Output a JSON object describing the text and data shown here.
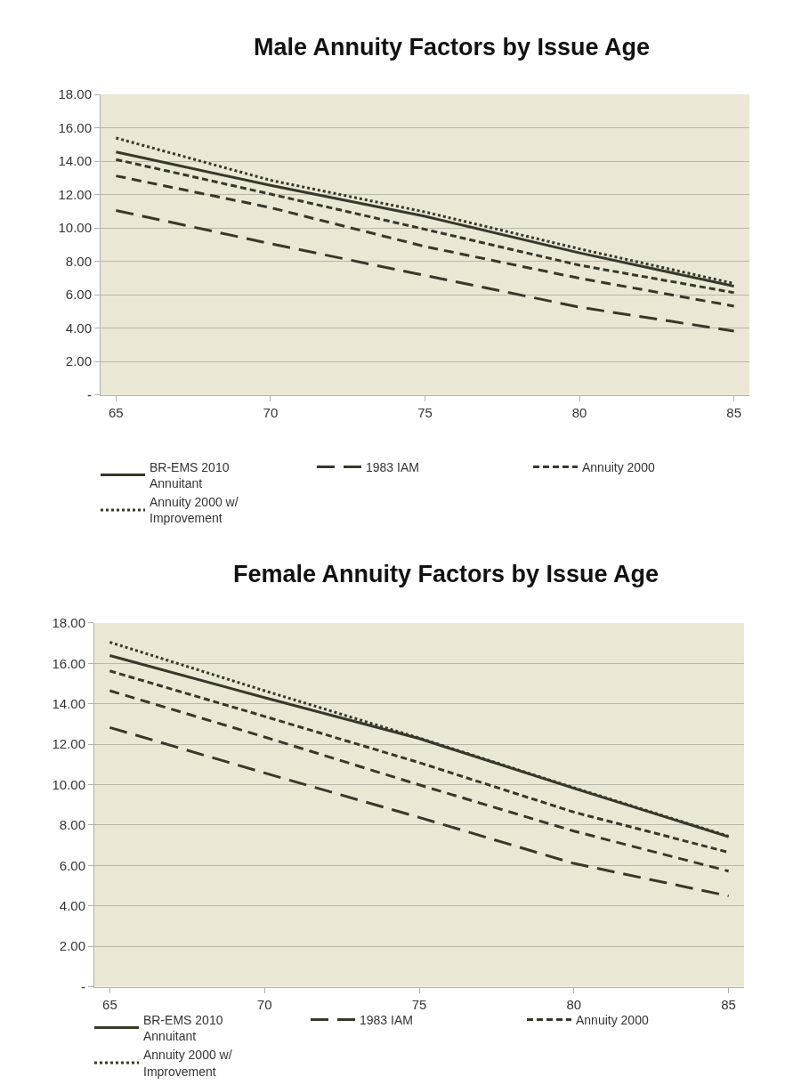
{
  "chart_data": [
    {
      "type": "line",
      "title": "Male Annuity Factors by Issue Age",
      "xlim": [
        64.5,
        85.5
      ],
      "xticks": [
        65,
        70,
        75,
        80,
        85
      ],
      "ylim": [
        0,
        18
      ],
      "yticks": [
        {
          "value": 0,
          "label": "-"
        },
        {
          "value": 2,
          "label": "2.00"
        },
        {
          "value": 4,
          "label": "4.00"
        },
        {
          "value": 6,
          "label": "6.00"
        },
        {
          "value": 8,
          "label": "8.00"
        },
        {
          "value": 10,
          "label": "10.00"
        },
        {
          "value": 12,
          "label": "12.00"
        },
        {
          "value": 14,
          "label": "14.00"
        },
        {
          "value": 16,
          "label": "16.00"
        },
        {
          "value": 18,
          "label": "18.00"
        }
      ],
      "x": [
        65,
        70,
        75,
        80,
        85
      ],
      "grid": "y",
      "legend": "bottom",
      "marker": "none",
      "series": [
        {
          "name": "BR-EMS 2010 Annuitant",
          "color": "#38382a",
          "line_style": "solid",
          "values": [
            14.55,
            12.55,
            10.7,
            8.51,
            6.52
          ]
        },
        {
          "name": "1983 IAM",
          "color": "#38382a",
          "line_style": "dashed",
          "values": [
            11.05,
            9.06,
            7.16,
            5.26,
            3.83
          ]
        },
        {
          "color": "#38382a",
          "line_style": "dashed",
          "values": [
            13.12,
            11.22,
            8.89,
            6.99,
            5.32
          ]
        },
        {
          "name": "Annuity 2000",
          "color": "#38382a",
          "line_style": "dashed",
          "values": [
            14.1,
            12.03,
            9.92,
            7.77,
            6.13
          ]
        },
        {
          "name": "Annuity 2000 w/ Improvement",
          "color": "#38382a",
          "line_style": "dotted",
          "values": [
            15.39,
            12.86,
            10.96,
            8.75,
            6.68
          ]
        }
      ]
    },
    {
      "type": "line",
      "title": "Female Annuity Factors by Issue Age",
      "xlim": [
        64.5,
        85.5
      ],
      "xticks": [
        65,
        70,
        75,
        80,
        85
      ],
      "ylim": [
        0,
        18
      ],
      "yticks": [
        {
          "value": 0,
          "label": "-"
        },
        {
          "value": 2,
          "label": "2.00"
        },
        {
          "value": 4,
          "label": "4.00"
        },
        {
          "value": 6,
          "label": "6.00"
        },
        {
          "value": 8,
          "label": "8.00"
        },
        {
          "value": 10,
          "label": "10.00"
        },
        {
          "value": 12,
          "label": "12.00"
        },
        {
          "value": 14,
          "label": "14.00"
        },
        {
          "value": 16,
          "label": "16.00"
        },
        {
          "value": 18,
          "label": "18.00"
        }
      ],
      "x": [
        65,
        70,
        75,
        80,
        85
      ],
      "grid": "y",
      "legend": "bottom",
      "marker": "none",
      "series": [
        {
          "name": "BR-EMS 2010 Annuitant",
          "color": "#38382a",
          "line_style": "solid",
          "values": [
            16.39,
            14.31,
            12.28,
            9.82,
            7.42
          ]
        },
        {
          "name": "1983 IAM",
          "color": "#38382a",
          "line_style": "dashed",
          "values": [
            12.83,
            10.58,
            8.38,
            6.1,
            4.49
          ]
        },
        {
          "color": "#38382a",
          "line_style": "dashed",
          "values": [
            14.65,
            12.36,
            9.99,
            7.7,
            5.72
          ]
        },
        {
          "name": "Annuity 2000",
          "color": "#38382a",
          "line_style": "dashed",
          "values": [
            15.63,
            13.38,
            11.09,
            8.64,
            6.65
          ]
        },
        {
          "name": "Annuity 2000 w/ Improvement",
          "color": "#38382a",
          "line_style": "dotted",
          "values": [
            17.05,
            14.65,
            12.31,
            9.85,
            7.45
          ]
        }
      ]
    }
  ]
}
